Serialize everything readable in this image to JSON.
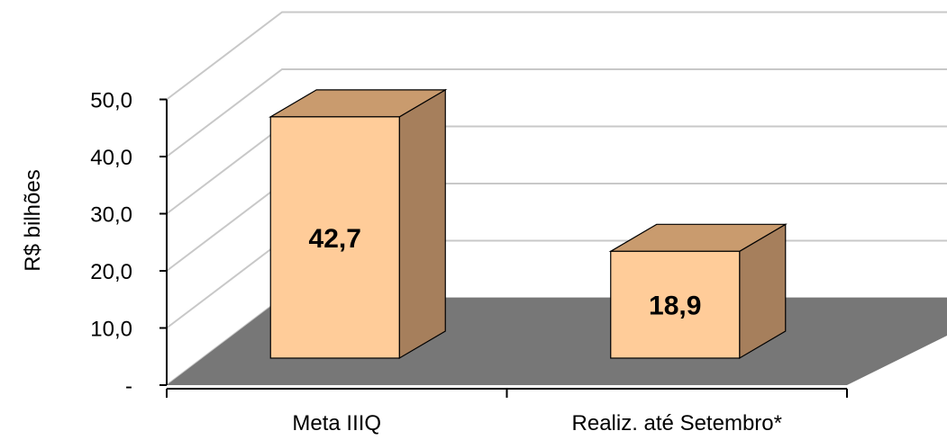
{
  "chart_data": {
    "type": "bar",
    "style": "3d",
    "categories": [
      "Meta IIIQ",
      "Realiz. até Setembro*"
    ],
    "values": [
      42.7,
      18.9
    ],
    "data_labels": [
      "42,7",
      "18,9"
    ],
    "title": "",
    "xlabel": "",
    "ylabel": "R$ bilhões",
    "ylim": [
      0,
      50
    ],
    "y_ticks": [
      {
        "value": 0,
        "label": "-"
      },
      {
        "value": 10,
        "label": "10,0"
      },
      {
        "value": 20,
        "label": "20,0"
      },
      {
        "value": 30,
        "label": "30,0"
      },
      {
        "value": 40,
        "label": "40,0"
      },
      {
        "value": 50,
        "label": "50,0"
      }
    ],
    "grid": true,
    "legend": "none",
    "colors": {
      "bar_front": "#FFCC99",
      "bar_top": "#C99B6E",
      "bar_side": "#A67F5C",
      "floor": "#777777",
      "gridline": "#C8C8C8",
      "axis": "#000000"
    }
  }
}
